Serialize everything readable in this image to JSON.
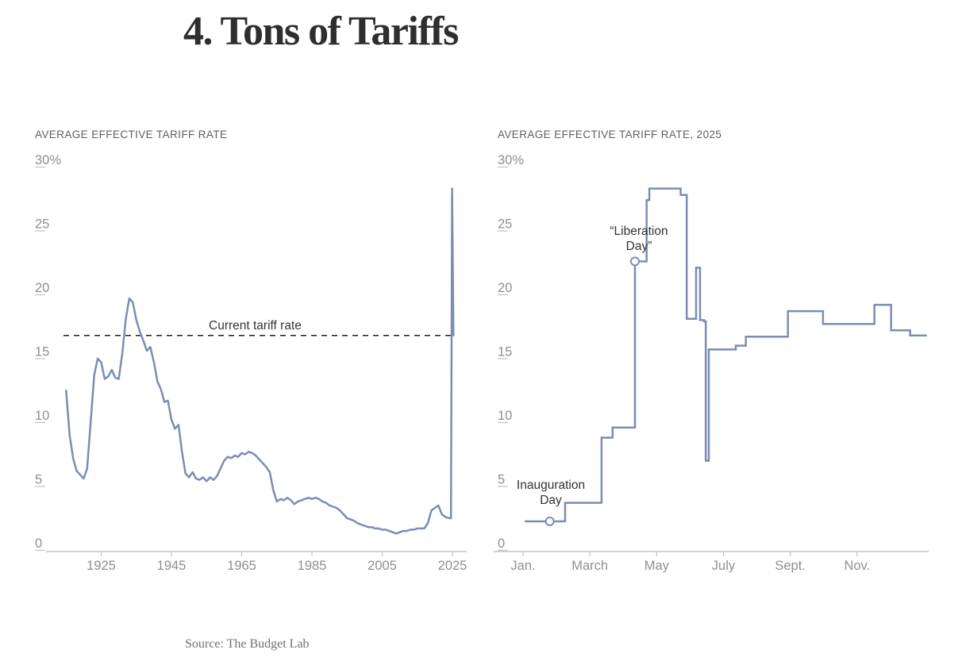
{
  "page": {
    "title": "4. Tons of Tariffs",
    "source_note": "Source: The Budget Lab"
  },
  "left_chart": {
    "header": "AVERAGE EFFECTIVE TARIFF RATE",
    "current_rate_label": "Current tariff rate"
  },
  "right_chart": {
    "header": "AVERAGE EFFECTIVE TARIFF RATE, 2025",
    "inauguration_label": "Inauguration Day",
    "liberation_label": "“Liberation Day”"
  },
  "colors": {
    "line": "#7c8cb6",
    "axis": "#bcbcbc",
    "tick": "#c3c3c3",
    "tick_label": "#8f8f8f",
    "dashed_reference": "#1f1f1f",
    "annotation_text": "#333333",
    "marker_fill": "#ffffff"
  },
  "chart_data": [
    {
      "type": "line",
      "title": "AVERAGE EFFECTIVE TARIFF RATE",
      "unit": "percent",
      "xlim": [
        1912,
        2029
      ],
      "ylim": [
        0,
        30
      ],
      "grid": false,
      "x_label_ticks": [
        1925,
        1945,
        1965,
        1985,
        2005,
        2025
      ],
      "y_ticks": [
        0,
        5,
        10,
        15,
        20,
        25
      ],
      "y_top": {
        "value": 30,
        "label": "30%"
      },
      "reference_line": {
        "label": "Current tariff rate",
        "value": 16.6,
        "style": "dashed"
      },
      "x": [
        1915,
        1916,
        1917,
        1918,
        1919,
        1920,
        1921,
        1922,
        1923,
        1924,
        1925,
        1926,
        1927,
        1928,
        1929,
        1930,
        1931,
        1932,
        1933,
        1934,
        1935,
        1936,
        1937,
        1938,
        1939,
        1940,
        1941,
        1942,
        1943,
        1944,
        1945,
        1946,
        1947,
        1948,
        1949,
        1950,
        1951,
        1952,
        1953,
        1954,
        1955,
        1956,
        1957,
        1958,
        1959,
        1960,
        1961,
        1962,
        1963,
        1964,
        1965,
        1966,
        1967,
        1968,
        1969,
        1970,
        1971,
        1972,
        1973,
        1974,
        1975,
        1976,
        1977,
        1978,
        1979,
        1980,
        1981,
        1982,
        1983,
        1984,
        1985,
        1986,
        1987,
        1988,
        1989,
        1990,
        1991,
        1992,
        1993,
        1994,
        1995,
        1996,
        1997,
        1998,
        1999,
        2000,
        2001,
        2002,
        2003,
        2004,
        2005,
        2006,
        2007,
        2008,
        2009,
        2010,
        2011,
        2012,
        2013,
        2014,
        2015,
        2016,
        2017,
        2018,
        2019,
        2020,
        2021,
        2022,
        2023,
        2024,
        2024.6,
        2024.9,
        2025.3
      ],
      "values": [
        12.3,
        8.8,
        7.0,
        6.0,
        5.7,
        5.4,
        6.2,
        9.8,
        13.5,
        14.8,
        14.5,
        13.2,
        13.4,
        13.9,
        13.3,
        13.2,
        15.2,
        17.9,
        19.5,
        19.2,
        17.8,
        16.9,
        16.2,
        15.4,
        15.7,
        14.5,
        13.0,
        12.4,
        11.4,
        11.5,
        10.0,
        9.3,
        9.6,
        7.5,
        5.8,
        5.5,
        5.9,
        5.4,
        5.3,
        5.5,
        5.2,
        5.5,
        5.3,
        5.6,
        6.2,
        6.8,
        7.1,
        7.0,
        7.2,
        7.1,
        7.4,
        7.3,
        7.5,
        7.4,
        7.2,
        6.9,
        6.6,
        6.3,
        5.9,
        4.5,
        3.6,
        3.8,
        3.7,
        3.9,
        3.7,
        3.4,
        3.6,
        3.7,
        3.8,
        3.9,
        3.8,
        3.9,
        3.8,
        3.6,
        3.5,
        3.3,
        3.2,
        3.1,
        2.9,
        2.6,
        2.3,
        2.2,
        2.1,
        1.9,
        1.8,
        1.7,
        1.6,
        1.6,
        1.5,
        1.5,
        1.4,
        1.4,
        1.3,
        1.2,
        1.1,
        1.2,
        1.3,
        1.3,
        1.4,
        1.4,
        1.5,
        1.5,
        1.5,
        1.9,
        2.9,
        3.1,
        3.3,
        2.6,
        2.4,
        2.3,
        2.3,
        28.1,
        16.6
      ]
    },
    {
      "type": "step-line",
      "title": "AVERAGE EFFECTIVE TARIFF RATE, 2025",
      "unit": "percent",
      "x_unit": "months-from-jan-1-2025",
      "ylim": [
        0,
        30
      ],
      "grid": false,
      "x_label_ticks": [
        {
          "m": 0,
          "label": "Jan."
        },
        {
          "m": 2,
          "label": "March"
        },
        {
          "m": 4,
          "label": "May"
        },
        {
          "m": 6,
          "label": "July"
        },
        {
          "m": 8,
          "label": "Sept."
        },
        {
          "m": 10,
          "label": "Nov."
        }
      ],
      "y_ticks": [
        0,
        5,
        10,
        15,
        20,
        25
      ],
      "y_top": {
        "value": 30,
        "label": "30%"
      },
      "steps": [
        [
          0.05,
          2.05
        ],
        [
          1.26,
          3.5
        ],
        [
          2.35,
          8.6
        ],
        [
          2.68,
          9.4
        ],
        [
          3.35,
          22.4
        ],
        [
          3.7,
          27.2
        ],
        [
          3.78,
          28.1
        ],
        [
          4.72,
          27.6
        ],
        [
          4.9,
          17.9
        ],
        [
          5.18,
          21.9
        ],
        [
          5.3,
          17.8
        ],
        [
          5.42,
          17.7
        ],
        [
          5.47,
          6.8
        ],
        [
          5.56,
          15.5
        ],
        [
          6.37,
          15.8
        ],
        [
          6.67,
          16.5
        ],
        [
          7.93,
          18.5
        ],
        [
          8.98,
          17.5
        ],
        [
          10.52,
          19.0
        ],
        [
          11.02,
          17.0
        ],
        [
          11.59,
          16.6
        ],
        [
          12.09,
          16.6
        ]
      ],
      "markers": [
        {
          "label": "Inauguration Day",
          "m": 0.8,
          "value": 2.05
        },
        {
          "label": "“Liberation Day”",
          "m": 3.35,
          "value": 22.4
        }
      ]
    }
  ]
}
